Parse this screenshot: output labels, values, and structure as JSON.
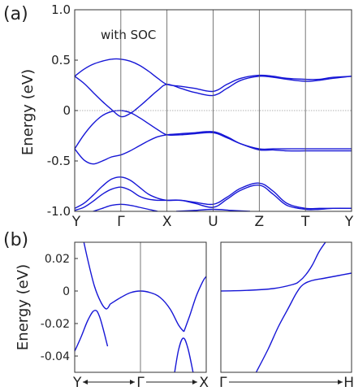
{
  "chart_data": [
    {
      "panel": "(a)",
      "type": "line",
      "annotation": "with SOC",
      "ylabel": "Energy (eV)",
      "ylim": [
        -1.0,
        1.0
      ],
      "yticks": [
        "1.0",
        "0.5",
        "0",
        "-0.5",
        "-1.0"
      ],
      "ytick_values": [
        1.0,
        0.5,
        0,
        -0.5,
        -1.0
      ],
      "kpoints": [
        "Y",
        "Γ",
        "X",
        "U",
        "Z",
        "T",
        "Y"
      ],
      "kpoint_x": [
        0,
        1,
        2,
        3,
        4,
        5,
        6
      ],
      "zero_line": true,
      "series": [
        {
          "x": [
            0,
            0.2,
            0.4,
            0.6,
            0.8,
            1.0,
            1.2,
            1.4,
            1.6,
            1.8,
            2.0,
            2.3,
            2.6,
            3.0,
            3.3,
            3.6,
            4.0,
            4.3,
            4.6,
            5.0,
            5.3,
            5.6,
            6.0
          ],
          "y": [
            0.34,
            0.41,
            0.46,
            0.49,
            0.51,
            0.51,
            0.49,
            0.45,
            0.39,
            0.32,
            0.26,
            0.24,
            0.22,
            0.19,
            0.26,
            0.32,
            0.35,
            0.34,
            0.32,
            0.31,
            0.31,
            0.33,
            0.34
          ]
        },
        {
          "x": [
            0,
            0.2,
            0.4,
            0.6,
            0.8,
            1.0,
            1.2,
            1.4,
            1.6,
            1.8,
            2.0,
            2.3,
            2.6,
            3.0,
            3.3,
            3.6,
            4.0,
            4.3,
            4.6,
            5.0,
            5.3,
            5.6,
            6.0
          ],
          "y": [
            0.34,
            0.27,
            0.18,
            0.09,
            0.01,
            -0.06,
            -0.03,
            0.04,
            0.12,
            0.2,
            0.26,
            0.22,
            0.18,
            0.15,
            0.22,
            0.3,
            0.34,
            0.33,
            0.31,
            0.29,
            0.3,
            0.32,
            0.34
          ]
        },
        {
          "x": [
            0,
            0.2,
            0.4,
            0.6,
            0.8,
            1.0,
            1.2,
            1.4,
            1.6,
            1.8,
            2.0,
            2.3,
            2.6,
            3.0,
            3.3,
            3.6,
            4.0,
            4.3,
            4.6,
            5.0,
            5.3,
            5.6,
            6.0
          ],
          "y": [
            -0.38,
            -0.24,
            -0.13,
            -0.05,
            -0.01,
            0.0,
            -0.02,
            -0.07,
            -0.13,
            -0.19,
            -0.24,
            -0.24,
            -0.23,
            -0.22,
            -0.27,
            -0.33,
            -0.38,
            -0.38,
            -0.38,
            -0.38,
            -0.38,
            -0.38,
            -0.38
          ]
        },
        {
          "x": [
            0,
            0.2,
            0.4,
            0.6,
            0.8,
            1.0,
            1.2,
            1.4,
            1.6,
            1.8,
            2.0,
            2.3,
            2.6,
            3.0,
            3.3,
            3.6,
            4.0,
            4.3,
            4.6,
            5.0,
            5.3,
            5.6,
            6.0
          ],
          "y": [
            -0.38,
            -0.49,
            -0.53,
            -0.5,
            -0.46,
            -0.44,
            -0.4,
            -0.35,
            -0.3,
            -0.26,
            -0.24,
            -0.23,
            -0.22,
            -0.21,
            -0.26,
            -0.33,
            -0.39,
            -0.39,
            -0.4,
            -0.4,
            -0.4,
            -0.4,
            -0.4
          ]
        },
        {
          "x": [
            0,
            0.2,
            0.4,
            0.6,
            0.8,
            1.0,
            1.2,
            1.4,
            1.6,
            1.8,
            2.0,
            2.3,
            2.6,
            3.0,
            3.3,
            3.6,
            4.0,
            4.3,
            4.6,
            5.0,
            5.3,
            5.6,
            6.0
          ],
          "y": [
            -0.97,
            -0.92,
            -0.84,
            -0.75,
            -0.68,
            -0.66,
            -0.69,
            -0.76,
            -0.83,
            -0.87,
            -0.89,
            -0.89,
            -0.91,
            -0.93,
            -0.86,
            -0.77,
            -0.72,
            -0.8,
            -0.92,
            -0.97,
            -0.97,
            -0.97,
            -0.97
          ]
        },
        {
          "x": [
            0,
            0.2,
            0.4,
            0.6,
            0.8,
            1.0,
            1.2,
            1.4,
            1.6,
            1.8,
            2.0,
            2.3,
            2.6,
            3.0,
            3.3,
            3.6,
            4.0,
            4.3,
            4.6,
            5.0,
            5.3,
            5.6,
            6.0
          ],
          "y": [
            -0.99,
            -0.96,
            -0.9,
            -0.83,
            -0.78,
            -0.76,
            -0.79,
            -0.85,
            -0.88,
            -0.89,
            -0.89,
            -0.89,
            -0.92,
            -0.96,
            -0.88,
            -0.79,
            -0.74,
            -0.83,
            -0.94,
            -0.98,
            -0.98,
            -0.97,
            -0.97
          ]
        },
        {
          "x": [
            0.4,
            0.6,
            0.8,
            1.0,
            1.2,
            1.4,
            1.6,
            1.8
          ],
          "y": [
            -1.0,
            -0.97,
            -0.94,
            -0.93,
            -0.94,
            -0.96,
            -0.98,
            -1.0
          ]
        },
        {
          "x": [
            2.2,
            2.6,
            3.0,
            3.4,
            3.8
          ],
          "y": [
            -1.0,
            -0.99,
            -0.98,
            -0.99,
            -1.0
          ]
        }
      ]
    },
    {
      "panel": "(b)",
      "type": "line",
      "ylabel": "Energy (eV)",
      "ylim": [
        -0.05,
        0.03
      ],
      "yticks": [
        "0.02",
        "0",
        "-0.02",
        "-0.04"
      ],
      "ytick_values": [
        0.02,
        0,
        -0.02,
        -0.04
      ],
      "kpoints": [
        "Y",
        "Γ",
        "X"
      ],
      "kpoint_x": [
        -1,
        0,
        1
      ],
      "series": [
        {
          "x": [
            -0.86,
            -0.8,
            -0.7,
            -0.6,
            -0.52,
            -0.46
          ],
          "y": [
            0.03,
            0.019,
            0.003,
            -0.007,
            -0.011,
            -0.008
          ]
        },
        {
          "x": [
            -0.46,
            -0.3,
            -0.15,
            0,
            0.15,
            0.3,
            0.45,
            0.58,
            0.66
          ],
          "y": [
            -0.008,
            -0.004,
            -0.001,
            0.0,
            -0.001,
            -0.004,
            -0.011,
            -0.021,
            -0.025
          ]
        },
        {
          "x": [
            0.66,
            0.75,
            0.85,
            0.95,
            1.0
          ],
          "y": [
            -0.025,
            -0.015,
            -0.003,
            0.006,
            0.009
          ]
        },
        {
          "x": [
            -1.0,
            -0.9,
            -0.8,
            -0.7,
            -0.62,
            -0.5
          ],
          "y": [
            -0.037,
            -0.028,
            -0.018,
            -0.012,
            -0.016,
            -0.034
          ]
        },
        {
          "x": [
            0.52,
            0.58,
            0.65,
            0.72,
            0.8
          ],
          "y": [
            -0.05,
            -0.036,
            -0.029,
            -0.035,
            -0.05
          ]
        }
      ]
    },
    {
      "panel": "(b) right",
      "type": "line",
      "ylim": [
        -0.05,
        0.03
      ],
      "kpoints": [
        "Γ",
        "H"
      ],
      "kpoint_x": [
        0,
        1
      ],
      "series": [
        {
          "x": [
            0,
            0.2,
            0.4,
            0.55,
            0.6,
            0.65,
            0.7,
            0.75,
            0.8
          ],
          "y": [
            0.0,
            0.0004,
            0.0015,
            0.004,
            0.006,
            0.01,
            0.016,
            0.024,
            0.03
          ]
        },
        {
          "x": [
            0.27,
            0.36,
            0.44,
            0.52,
            0.58,
            0.63,
            0.7,
            0.8,
            0.9,
            1.0
          ],
          "y": [
            -0.05,
            -0.036,
            -0.022,
            -0.01,
            -0.001,
            0.004,
            0.0065,
            0.008,
            0.0095,
            0.011
          ]
        }
      ]
    }
  ]
}
